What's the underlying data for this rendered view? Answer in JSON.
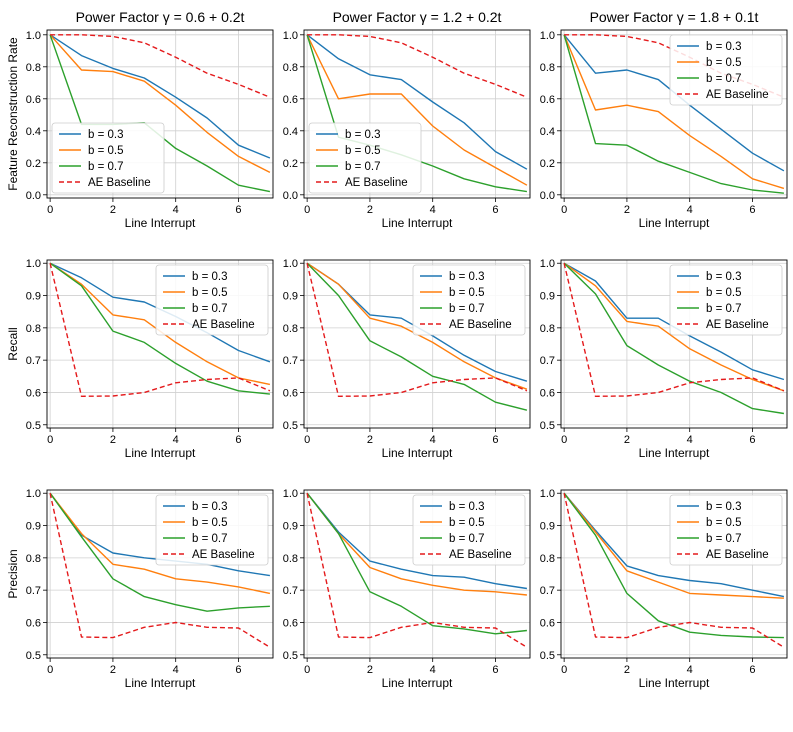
{
  "colors": {
    "b03": "#1f77b4",
    "b05": "#ff7f0e",
    "b07": "#2ca02c",
    "baseline": "#e41a1c",
    "grid": "#d0d0d0"
  },
  "chart_data": [
    {
      "type": "line",
      "row": 0,
      "col": 0,
      "title": "Power Factor γ = 0.6 + 0.2t",
      "xlabel": "Line Interrupt",
      "ylabel": "Feature Reconstruction Rate",
      "xlim": [
        -0.1,
        7.1
      ],
      "ylim": [
        -0.02,
        1.03
      ],
      "xticks": [
        0,
        2,
        4,
        6
      ],
      "yticks": [
        0.0,
        0.2,
        0.4,
        0.6,
        0.8,
        1.0
      ],
      "x": [
        0,
        1,
        2,
        3,
        4,
        5,
        6,
        7
      ],
      "legend": "bottom-left",
      "series": [
        {
          "name": "b = 0.3",
          "values": [
            1.0,
            0.87,
            0.79,
            0.73,
            0.61,
            0.48,
            0.31,
            0.23
          ]
        },
        {
          "name": "b = 0.5",
          "values": [
            1.0,
            0.78,
            0.77,
            0.71,
            0.56,
            0.39,
            0.24,
            0.14
          ]
        },
        {
          "name": "b = 0.7",
          "values": [
            1.0,
            0.44,
            0.44,
            0.45,
            0.29,
            0.18,
            0.06,
            0.02
          ]
        },
        {
          "name": "AE Baseline",
          "values": [
            1.0,
            1.0,
            0.99,
            0.95,
            0.86,
            0.76,
            0.69,
            0.61
          ],
          "dashed": true
        }
      ]
    },
    {
      "type": "line",
      "row": 0,
      "col": 1,
      "title": "Power Factor γ = 1.2 + 0.2t",
      "xlabel": "Line Interrupt",
      "ylabel": "",
      "xlim": [
        -0.1,
        7.1
      ],
      "ylim": [
        -0.02,
        1.03
      ],
      "xticks": [
        0,
        2,
        4,
        6
      ],
      "yticks": [
        0.0,
        0.2,
        0.4,
        0.6,
        0.8,
        1.0
      ],
      "x": [
        0,
        1,
        2,
        3,
        4,
        5,
        6,
        7
      ],
      "legend": "bottom-left",
      "series": [
        {
          "name": "b = 0.3",
          "values": [
            1.0,
            0.85,
            0.75,
            0.72,
            0.58,
            0.45,
            0.27,
            0.16
          ]
        },
        {
          "name": "b = 0.5",
          "values": [
            1.0,
            0.6,
            0.63,
            0.63,
            0.43,
            0.28,
            0.17,
            0.06
          ]
        },
        {
          "name": "b = 0.7",
          "values": [
            1.0,
            0.36,
            0.31,
            0.25,
            0.18,
            0.1,
            0.05,
            0.02
          ]
        },
        {
          "name": "AE Baseline",
          "values": [
            1.0,
            1.0,
            0.99,
            0.95,
            0.86,
            0.76,
            0.69,
            0.61
          ],
          "dashed": true
        }
      ]
    },
    {
      "type": "line",
      "row": 0,
      "col": 2,
      "title": "Power Factor γ = 1.8 + 0.1t",
      "xlabel": "Line Interrupt",
      "ylabel": "",
      "xlim": [
        -0.1,
        7.1
      ],
      "ylim": [
        -0.02,
        1.03
      ],
      "xticks": [
        0,
        2,
        4,
        6
      ],
      "yticks": [
        0.0,
        0.2,
        0.4,
        0.6,
        0.8,
        1.0
      ],
      "x": [
        0,
        1,
        2,
        3,
        4,
        5,
        6,
        7
      ],
      "legend": "top-right",
      "series": [
        {
          "name": "b = 0.3",
          "values": [
            1.0,
            0.76,
            0.78,
            0.72,
            0.56,
            0.41,
            0.26,
            0.15
          ]
        },
        {
          "name": "b = 0.5",
          "values": [
            1.0,
            0.53,
            0.56,
            0.52,
            0.37,
            0.24,
            0.1,
            0.04
          ]
        },
        {
          "name": "b = 0.7",
          "values": [
            1.0,
            0.32,
            0.31,
            0.21,
            0.14,
            0.07,
            0.03,
            0.01
          ]
        },
        {
          "name": "AE Baseline",
          "values": [
            1.0,
            1.0,
            0.99,
            0.95,
            0.86,
            0.76,
            0.69,
            0.61
          ],
          "dashed": true
        }
      ]
    },
    {
      "type": "line",
      "row": 1,
      "col": 0,
      "title": "",
      "xlabel": "Line Interrupt",
      "ylabel": "Recall",
      "xlim": [
        -0.1,
        7.1
      ],
      "ylim": [
        0.49,
        1.01
      ],
      "xticks": [
        0,
        2,
        4,
        6
      ],
      "yticks": [
        0.5,
        0.6,
        0.7,
        0.8,
        0.9,
        1.0
      ],
      "x": [
        0,
        1,
        2,
        3,
        4,
        5,
        6,
        7
      ],
      "legend": "top-right",
      "series": [
        {
          "name": "b = 0.3",
          "values": [
            1.0,
            0.955,
            0.895,
            0.88,
            0.835,
            0.785,
            0.73,
            0.695
          ]
        },
        {
          "name": "b = 0.5",
          "values": [
            1.0,
            0.935,
            0.84,
            0.825,
            0.755,
            0.695,
            0.645,
            0.625
          ]
        },
        {
          "name": "b = 0.7",
          "values": [
            1.0,
            0.93,
            0.79,
            0.755,
            0.69,
            0.635,
            0.605,
            0.595
          ]
        },
        {
          "name": "AE Baseline",
          "values": [
            1.0,
            0.588,
            0.589,
            0.6,
            0.63,
            0.64,
            0.645,
            0.605
          ],
          "dashed": true
        }
      ]
    },
    {
      "type": "line",
      "row": 1,
      "col": 1,
      "title": "",
      "xlabel": "Line Interrupt",
      "ylabel": "",
      "xlim": [
        -0.1,
        7.1
      ],
      "ylim": [
        0.49,
        1.01
      ],
      "xticks": [
        0,
        2,
        4,
        6
      ],
      "yticks": [
        0.5,
        0.6,
        0.7,
        0.8,
        0.9,
        1.0
      ],
      "x": [
        0,
        1,
        2,
        3,
        4,
        5,
        6,
        7
      ],
      "legend": "top-right",
      "series": [
        {
          "name": "b = 0.3",
          "values": [
            1.0,
            0.935,
            0.84,
            0.83,
            0.775,
            0.715,
            0.665,
            0.635
          ]
        },
        {
          "name": "b = 0.5",
          "values": [
            1.0,
            0.935,
            0.83,
            0.805,
            0.755,
            0.695,
            0.645,
            0.61
          ]
        },
        {
          "name": "b = 0.7",
          "values": [
            1.0,
            0.9,
            0.76,
            0.71,
            0.65,
            0.625,
            0.57,
            0.545
          ]
        },
        {
          "name": "AE Baseline",
          "values": [
            1.0,
            0.588,
            0.589,
            0.6,
            0.63,
            0.64,
            0.645,
            0.605
          ],
          "dashed": true
        }
      ]
    },
    {
      "type": "line",
      "row": 1,
      "col": 2,
      "title": "",
      "xlabel": "Line Interrupt",
      "ylabel": "",
      "xlim": [
        -0.1,
        7.1
      ],
      "ylim": [
        0.49,
        1.01
      ],
      "xticks": [
        0,
        2,
        4,
        6
      ],
      "yticks": [
        0.5,
        0.6,
        0.7,
        0.8,
        0.9,
        1.0
      ],
      "x": [
        0,
        1,
        2,
        3,
        4,
        5,
        6,
        7
      ],
      "legend": "top-right",
      "series": [
        {
          "name": "b = 0.3",
          "values": [
            1.0,
            0.945,
            0.83,
            0.83,
            0.775,
            0.725,
            0.67,
            0.64
          ]
        },
        {
          "name": "b = 0.5",
          "values": [
            1.0,
            0.93,
            0.82,
            0.805,
            0.735,
            0.685,
            0.64,
            0.605
          ]
        },
        {
          "name": "b = 0.7",
          "values": [
            1.0,
            0.905,
            0.745,
            0.685,
            0.635,
            0.6,
            0.55,
            0.535
          ]
        },
        {
          "name": "AE Baseline",
          "values": [
            1.0,
            0.588,
            0.589,
            0.6,
            0.63,
            0.64,
            0.645,
            0.605
          ],
          "dashed": true
        }
      ]
    },
    {
      "type": "line",
      "row": 2,
      "col": 0,
      "title": "",
      "xlabel": "Line Interrupt",
      "ylabel": "Precision",
      "xlim": [
        -0.1,
        7.1
      ],
      "ylim": [
        0.49,
        1.01
      ],
      "xticks": [
        0,
        2,
        4,
        6
      ],
      "yticks": [
        0.5,
        0.6,
        0.7,
        0.8,
        0.9,
        1.0
      ],
      "x": [
        0,
        1,
        2,
        3,
        4,
        5,
        6,
        7
      ],
      "legend": "top-right",
      "series": [
        {
          "name": "b = 0.3",
          "values": [
            1.0,
            0.87,
            0.815,
            0.8,
            0.79,
            0.78,
            0.76,
            0.745
          ]
        },
        {
          "name": "b = 0.5",
          "values": [
            1.0,
            0.875,
            0.78,
            0.765,
            0.735,
            0.725,
            0.71,
            0.69
          ]
        },
        {
          "name": "b = 0.7",
          "values": [
            1.0,
            0.865,
            0.735,
            0.68,
            0.655,
            0.635,
            0.645,
            0.65
          ]
        },
        {
          "name": "AE Baseline",
          "values": [
            1.0,
            0.555,
            0.553,
            0.585,
            0.6,
            0.585,
            0.583,
            0.523
          ],
          "dashed": true
        }
      ]
    },
    {
      "type": "line",
      "row": 2,
      "col": 1,
      "title": "",
      "xlabel": "Line Interrupt",
      "ylabel": "",
      "xlim": [
        -0.1,
        7.1
      ],
      "ylim": [
        0.49,
        1.01
      ],
      "xticks": [
        0,
        2,
        4,
        6
      ],
      "yticks": [
        0.5,
        0.6,
        0.7,
        0.8,
        0.9,
        1.0
      ],
      "x": [
        0,
        1,
        2,
        3,
        4,
        5,
        6,
        7
      ],
      "legend": "top-right",
      "series": [
        {
          "name": "b = 0.3",
          "values": [
            1.0,
            0.88,
            0.79,
            0.765,
            0.745,
            0.74,
            0.72,
            0.705
          ]
        },
        {
          "name": "b = 0.5",
          "values": [
            1.0,
            0.875,
            0.77,
            0.735,
            0.715,
            0.7,
            0.695,
            0.685
          ]
        },
        {
          "name": "b = 0.7",
          "values": [
            1.0,
            0.875,
            0.695,
            0.65,
            0.59,
            0.58,
            0.565,
            0.575
          ]
        },
        {
          "name": "AE Baseline",
          "values": [
            1.0,
            0.555,
            0.553,
            0.585,
            0.6,
            0.585,
            0.583,
            0.523
          ],
          "dashed": true
        }
      ]
    },
    {
      "type": "line",
      "row": 2,
      "col": 2,
      "title": "",
      "xlabel": "Line Interrupt",
      "ylabel": "",
      "xlim": [
        -0.1,
        7.1
      ],
      "ylim": [
        0.49,
        1.01
      ],
      "xticks": [
        0,
        2,
        4,
        6
      ],
      "yticks": [
        0.5,
        0.6,
        0.7,
        0.8,
        0.9,
        1.0
      ],
      "x": [
        0,
        1,
        2,
        3,
        4,
        5,
        6,
        7
      ],
      "legend": "top-right",
      "series": [
        {
          "name": "b = 0.3",
          "values": [
            1.0,
            0.885,
            0.775,
            0.745,
            0.73,
            0.72,
            0.7,
            0.68
          ]
        },
        {
          "name": "b = 0.5",
          "values": [
            1.0,
            0.88,
            0.76,
            0.725,
            0.69,
            0.685,
            0.68,
            0.675
          ]
        },
        {
          "name": "b = 0.7",
          "values": [
            1.0,
            0.87,
            0.69,
            0.605,
            0.57,
            0.56,
            0.555,
            0.553
          ]
        },
        {
          "name": "AE Baseline",
          "values": [
            1.0,
            0.555,
            0.553,
            0.585,
            0.6,
            0.585,
            0.583,
            0.523
          ],
          "dashed": true
        }
      ]
    }
  ]
}
